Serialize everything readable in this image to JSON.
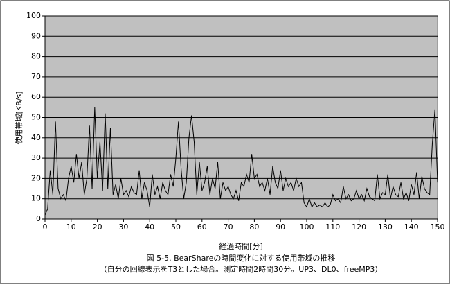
{
  "chart_data": {
    "type": "line",
    "caption": [
      "図 5-5. BearShareの時間変化に対する使用帯域の推移",
      "（自分の回線表示をT3とした場合。測定時間2時間30分。UP3、DL0、freeMP3）"
    ],
    "x_label": "経過時間[分]",
    "y_label": "使用帯域[KB/s]",
    "xlim": [
      0,
      150
    ],
    "xticks": [
      0,
      10,
      20,
      30,
      40,
      50,
      60,
      70,
      80,
      90,
      100,
      110,
      120,
      130,
      140,
      150
    ],
    "ylim": [
      0,
      100
    ],
    "yticks": [
      0,
      10,
      20,
      30,
      40,
      50,
      60,
      70,
      80,
      90,
      100
    ],
    "grid": true,
    "color": "#000000",
    "x": [
      0,
      1,
      2,
      3,
      4,
      5,
      6,
      7,
      8,
      9,
      10,
      11,
      12,
      13,
      14,
      15,
      16,
      17,
      18,
      19,
      20,
      21,
      22,
      23,
      24,
      25,
      26,
      27,
      28,
      29,
      30,
      31,
      32,
      33,
      34,
      35,
      36,
      37,
      38,
      39,
      40,
      41,
      42,
      43,
      44,
      45,
      46,
      47,
      48,
      49,
      50,
      51,
      52,
      53,
      54,
      55,
      56,
      57,
      58,
      59,
      60,
      61,
      62,
      63,
      64,
      65,
      66,
      67,
      68,
      69,
      70,
      71,
      72,
      73,
      74,
      75,
      76,
      77,
      78,
      79,
      80,
      81,
      82,
      83,
      84,
      85,
      86,
      87,
      88,
      89,
      90,
      91,
      92,
      93,
      94,
      95,
      96,
      97,
      98,
      99,
      100,
      101,
      102,
      103,
      104,
      105,
      106,
      107,
      108,
      109,
      110,
      111,
      112,
      113,
      114,
      115,
      116,
      117,
      118,
      119,
      120,
      121,
      122,
      123,
      124,
      125,
      126,
      127,
      128,
      129,
      130,
      131,
      132,
      133,
      134,
      135,
      136,
      137,
      138,
      139,
      140,
      141,
      142,
      143,
      144,
      145,
      146,
      147,
      148,
      149,
      150
    ],
    "values": [
      2,
      5,
      24,
      12,
      48,
      15,
      10,
      12,
      9,
      20,
      26,
      18,
      32,
      20,
      28,
      12,
      20,
      46,
      15,
      55,
      20,
      38,
      14,
      52,
      15,
      45,
      12,
      17,
      10,
      20,
      12,
      14,
      11,
      16,
      13,
      12,
      24,
      10,
      18,
      14,
      6,
      22,
      12,
      16,
      10,
      18,
      14,
      12,
      22,
      16,
      30,
      48,
      25,
      10,
      18,
      40,
      51,
      38,
      12,
      28,
      14,
      18,
      26,
      12,
      20,
      15,
      28,
      10,
      18,
      14,
      16,
      12,
      10,
      14,
      9,
      18,
      16,
      22,
      18,
      32,
      20,
      22,
      16,
      18,
      14,
      20,
      12,
      26,
      18,
      15,
      24,
      14,
      20,
      16,
      18,
      14,
      20,
      16,
      18,
      8,
      6,
      10,
      6,
      8,
      6,
      7,
      6,
      8,
      6,
      7,
      12,
      9,
      10,
      8,
      16,
      10,
      12,
      9,
      10,
      14,
      10,
      12,
      9,
      15,
      11,
      10,
      9,
      22,
      10,
      13,
      12,
      22,
      10,
      16,
      12,
      11,
      18,
      10,
      13,
      9,
      17,
      12,
      23,
      10,
      21,
      15,
      13,
      12,
      37,
      54,
      18
    ]
  }
}
